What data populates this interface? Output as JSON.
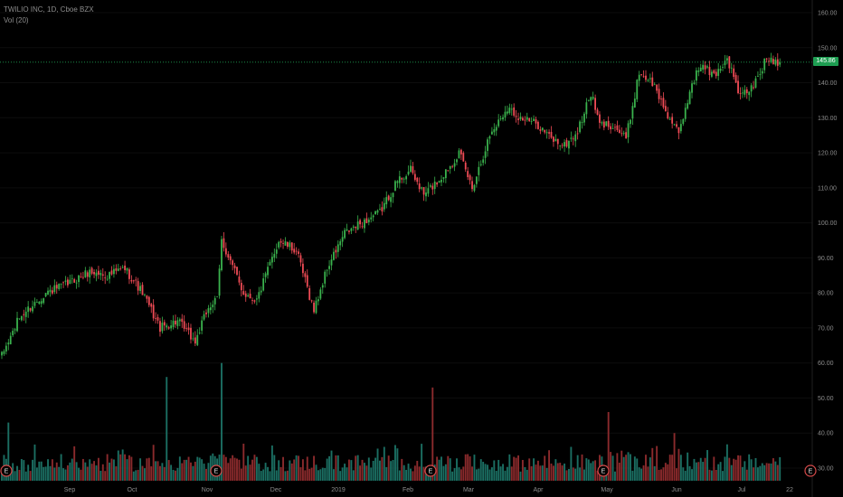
{
  "header": {
    "title": "TWILIO INC, 1D, Cboe BZX",
    "volume_label": "Vol (20)"
  },
  "last_price": {
    "label": "145.86",
    "value": 145.86,
    "color": "#1e9e52"
  },
  "colors": {
    "up": "#3ab24d",
    "down": "#ef4b55",
    "vol_up": "#1b6e62",
    "vol_down": "#8a2a2c",
    "earnings": "#d64a4a"
  },
  "chart_data": {
    "type": "candlestick",
    "y_axis": {
      "ticks": [
        30,
        40,
        50,
        60,
        70,
        80,
        90,
        100,
        110,
        120,
        130,
        140,
        150,
        160
      ],
      "range": [
        27,
        163
      ],
      "position": "right"
    },
    "x_axis": {
      "tick_labels": [
        "Sep",
        "Oct",
        "Nov",
        "Dec",
        "2019",
        "Feb",
        "Mar",
        "Apr",
        "May",
        "Jun",
        "Jul",
        "22"
      ]
    },
    "earnings_markers": [
      "E",
      "E",
      "E",
      "E",
      "E"
    ],
    "anchors": [
      {
        "t": 0,
        "price": 62
      },
      {
        "t": 8,
        "price": 73
      },
      {
        "t": 20,
        "price": 80
      },
      {
        "t": 28,
        "price": 82
      },
      {
        "t": 40,
        "price": 86
      },
      {
        "t": 48,
        "price": 85
      },
      {
        "t": 56,
        "price": 87
      },
      {
        "t": 64,
        "price": 80
      },
      {
        "t": 72,
        "price": 70
      },
      {
        "t": 80,
        "price": 72
      },
      {
        "t": 88,
        "price": 66
      },
      {
        "t": 94,
        "price": 76
      },
      {
        "t": 98,
        "price": 78
      },
      {
        "t": 100,
        "price": 95
      },
      {
        "t": 110,
        "price": 80
      },
      {
        "t": 116,
        "price": 78
      },
      {
        "t": 126,
        "price": 95
      },
      {
        "t": 134,
        "price": 92
      },
      {
        "t": 142,
        "price": 75
      },
      {
        "t": 148,
        "price": 87
      },
      {
        "t": 156,
        "price": 97
      },
      {
        "t": 164,
        "price": 100
      },
      {
        "t": 172,
        "price": 103
      },
      {
        "t": 180,
        "price": 112
      },
      {
        "t": 186,
        "price": 115
      },
      {
        "t": 192,
        "price": 108
      },
      {
        "t": 200,
        "price": 113
      },
      {
        "t": 208,
        "price": 120
      },
      {
        "t": 214,
        "price": 110
      },
      {
        "t": 222,
        "price": 125
      },
      {
        "t": 230,
        "price": 133
      },
      {
        "t": 236,
        "price": 130
      },
      {
        "t": 244,
        "price": 128
      },
      {
        "t": 250,
        "price": 124
      },
      {
        "t": 256,
        "price": 122
      },
      {
        "t": 262,
        "price": 126
      },
      {
        "t": 268,
        "price": 137
      },
      {
        "t": 272,
        "price": 128
      },
      {
        "t": 278,
        "price": 128
      },
      {
        "t": 284,
        "price": 124
      },
      {
        "t": 290,
        "price": 143
      },
      {
        "t": 296,
        "price": 140
      },
      {
        "t": 302,
        "price": 132
      },
      {
        "t": 308,
        "price": 125
      },
      {
        "t": 314,
        "price": 140
      },
      {
        "t": 318,
        "price": 145
      },
      {
        "t": 324,
        "price": 142
      },
      {
        "t": 330,
        "price": 147
      },
      {
        "t": 336,
        "price": 136
      },
      {
        "t": 342,
        "price": 139
      },
      {
        "t": 348,
        "price": 147
      },
      {
        "t": 354,
        "price": 145.86
      }
    ],
    "volume_spikes": [
      {
        "t": 3,
        "value": 43
      },
      {
        "t": 75,
        "value": 56
      },
      {
        "t": 100,
        "value": 60
      },
      {
        "t": 196,
        "value": 53
      },
      {
        "t": 276,
        "value": 46
      },
      {
        "t": 306,
        "value": 40
      }
    ]
  }
}
